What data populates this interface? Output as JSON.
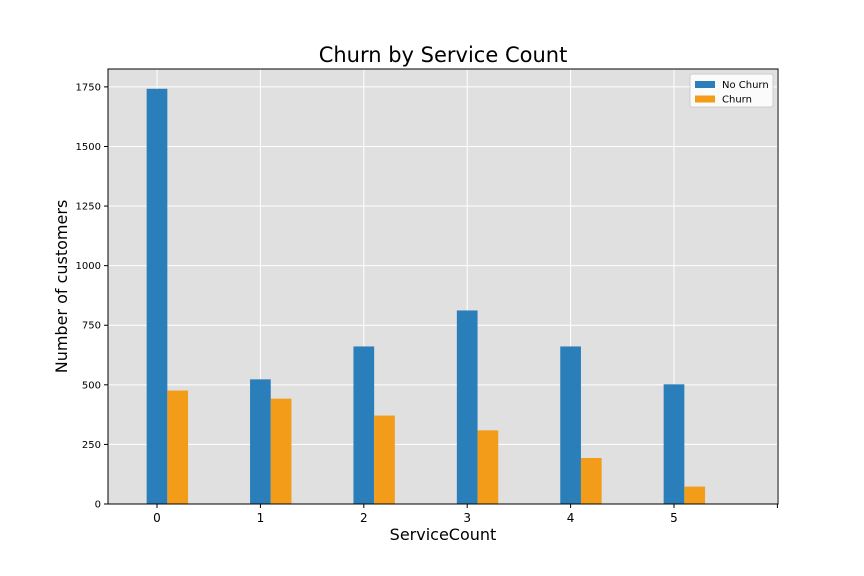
{
  "chart_data": {
    "type": "bar",
    "title": "Churn by Service Count",
    "xlabel": "ServiceCount",
    "ylabel": "Number of customers",
    "categories": [
      "0",
      "1",
      "2",
      "3",
      "4",
      "5"
    ],
    "series": [
      {
        "name": "No Churn",
        "color": "#2a7fbb",
        "values": [
          1742,
          523,
          661,
          812,
          661,
          502
        ]
      },
      {
        "name": "Churn",
        "color": "#f39c1a",
        "values": [
          476,
          442,
          371,
          309,
          193,
          73
        ]
      }
    ],
    "yticks": [
      "0",
      "250",
      "500",
      "750",
      "1000",
      "1250",
      "1500",
      "1750"
    ],
    "ylim": [
      0,
      1825
    ],
    "grid": true,
    "legend_position": "top-right",
    "background_color": "#e0e0e0"
  }
}
